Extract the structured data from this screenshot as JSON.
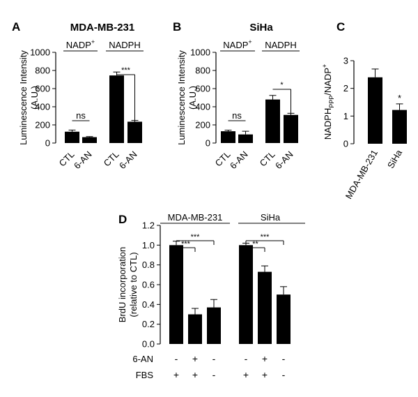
{
  "chart_data": [
    {
      "id": "A",
      "type": "bar",
      "panel_label": "A",
      "title": "MDA-MB-231",
      "ylabel": "Luminescence Intensity\n(A.U.)",
      "ylim": [
        0,
        1000
      ],
      "yticks": [
        "0",
        "200",
        "400",
        "600",
        "800",
        "1000"
      ],
      "categories": [
        "CTL",
        "6-AN",
        "CTL",
        "6-AN"
      ],
      "values": [
        125,
        65,
        745,
        235
      ],
      "errors": [
        18,
        6,
        38,
        14
      ],
      "groups": [
        {
          "label": "NADP",
          "sup": "+",
          "bars": [
            0,
            1
          ]
        },
        {
          "label": "NADPH",
          "sup": "",
          "bars": [
            2,
            3
          ]
        }
      ],
      "comparisons": [
        {
          "from": 0,
          "to": 1,
          "label": "ns"
        },
        {
          "from": 2,
          "to": 3,
          "label": "***"
        }
      ]
    },
    {
      "id": "B",
      "type": "bar",
      "panel_label": "B",
      "title": "SiHa",
      "ylabel": "Luminescence Intensity\n(A.U.)",
      "ylim": [
        0,
        1000
      ],
      "yticks": [
        "0",
        "200",
        "400",
        "600",
        "800",
        "1000"
      ],
      "categories": [
        "CTL",
        "6-AN",
        "CTL",
        "6-AN"
      ],
      "values": [
        130,
        95,
        480,
        310
      ],
      "errors": [
        12,
        35,
        45,
        18
      ],
      "groups": [
        {
          "label": "NADP",
          "sup": "+",
          "bars": [
            0,
            1
          ]
        },
        {
          "label": "NADPH",
          "sup": "",
          "bars": [
            2,
            3
          ]
        }
      ],
      "comparisons": [
        {
          "from": 0,
          "to": 1,
          "label": "ns"
        },
        {
          "from": 2,
          "to": 3,
          "label": "*"
        }
      ]
    },
    {
      "id": "C",
      "type": "bar",
      "panel_label": "C",
      "title": "",
      "ylabel_main": "NADPH",
      "ylabel_sub": "PPP",
      "ylabel_rest": "/NADP",
      "ylabel_sup": "+",
      "ylim": [
        0,
        3
      ],
      "yticks": [
        "0",
        "1",
        "2",
        "3"
      ],
      "categories": [
        "MDA-MB-231",
        "SiHa"
      ],
      "values": [
        2.4,
        1.22
      ],
      "errors": [
        0.3,
        0.22
      ],
      "annotations": [
        {
          "bar": 1,
          "label": "*"
        }
      ]
    },
    {
      "id": "D",
      "type": "bar",
      "panel_label": "D",
      "title": "",
      "ylabel": "BrdU incorporation\n(relative to CTL)",
      "ylim": [
        0,
        1.2
      ],
      "yticks": [
        "0.0",
        "0.2",
        "0.4",
        "0.6",
        "0.8",
        "1.0",
        "1.2"
      ],
      "groups": [
        {
          "label": "MDA-MB-231",
          "bars": [
            0,
            1,
            2
          ]
        },
        {
          "label": "SiHa",
          "bars": [
            3,
            4,
            5
          ]
        }
      ],
      "values": [
        1.0,
        0.3,
        0.37,
        1.0,
        0.73,
        0.5
      ],
      "errors": [
        0.04,
        0.06,
        0.08,
        0.02,
        0.06,
        0.08
      ],
      "comparisons": [
        {
          "from": 0,
          "to": 1,
          "label": "***",
          "level": 0
        },
        {
          "from": 0,
          "to": 2,
          "label": "***",
          "level": 1
        },
        {
          "from": 3,
          "to": 4,
          "label": "**",
          "level": 0
        },
        {
          "from": 3,
          "to": 5,
          "label": "***",
          "level": 1
        }
      ],
      "treatments": [
        {
          "label": "6-AN",
          "values": [
            "-",
            "+",
            "-",
            "-",
            "+",
            "-"
          ]
        },
        {
          "label": "FBS",
          "values": [
            "+",
            "+",
            "-",
            "+",
            "+",
            "-"
          ]
        }
      ]
    }
  ]
}
